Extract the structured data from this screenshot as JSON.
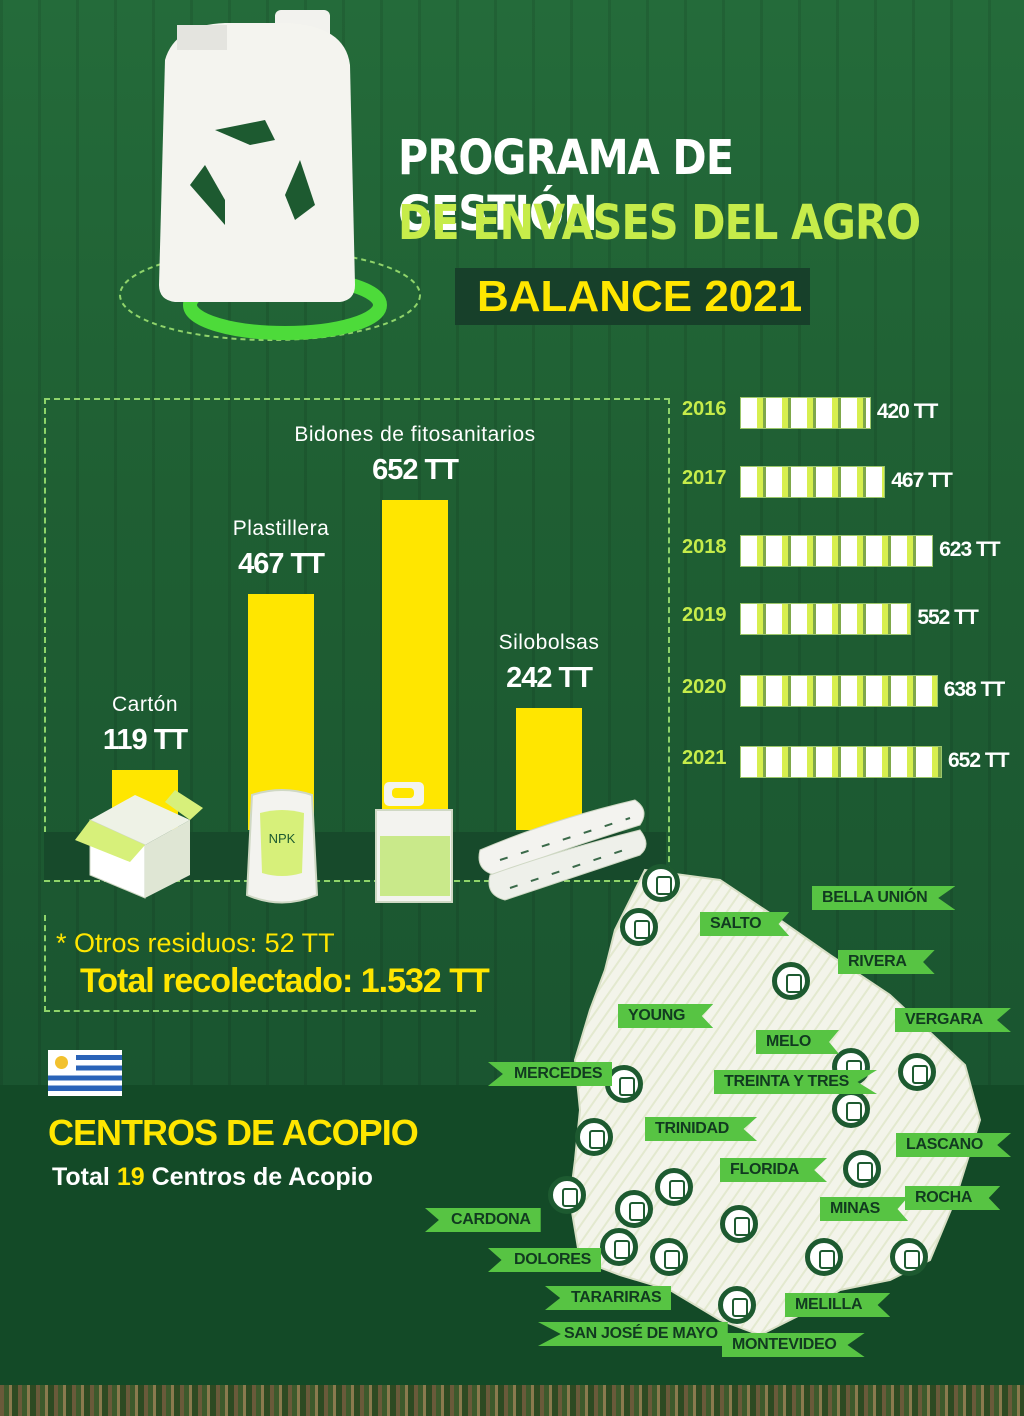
{
  "header": {
    "title_line1": "PROGRAMA DE GESTIÓN",
    "title_line2": "DE ENVASES DEL AGRO",
    "balance": "BALANCE 2021"
  },
  "chart_data": [
    {
      "type": "bar",
      "categories": [
        "Cartón",
        "Plastillera",
        "Bidones de fitosanitarios",
        "Silobolsas"
      ],
      "values": [
        119,
        467,
        652,
        242
      ],
      "value_labels": [
        "119 TT",
        "467 TT",
        "652 TT",
        "242 TT"
      ],
      "colors": {
        "bar": "#ffe600",
        "label": "#ffffff"
      },
      "bag_label": "NPK"
    },
    {
      "type": "bar",
      "orientation": "horizontal",
      "categories": [
        "2016",
        "2017",
        "2018",
        "2019",
        "2020",
        "2021"
      ],
      "values": [
        420,
        467,
        623,
        552,
        638,
        652
      ],
      "value_labels": [
        "420 TT",
        "467 TT",
        "623 TT",
        "552 TT",
        "638 TT",
        "652 TT"
      ]
    }
  ],
  "totals": {
    "others": "* Otros residuos: 52 TT",
    "total": "Total recolectado: 1.532 TT"
  },
  "centros": {
    "title": "CENTROS DE ACOPIO",
    "subtitle_pre": "Total ",
    "subtitle_num": "19",
    "subtitle_post": " Centros de Acopio",
    "locations": [
      "BELLA UNIÓN",
      "SALTO",
      "RIVERA",
      "YOUNG",
      "VERGARA",
      "MELO",
      "MERCEDES",
      "TREINTA Y TRES",
      "TRINIDAD",
      "LASCANO",
      "FLORIDA",
      "CARDONA",
      "MINAS",
      "ROCHA",
      "DOLORES",
      "TARARIRAS",
      "MELILLA",
      "SAN JOSÉ DE MAYO",
      "MONTEVIDEO"
    ]
  },
  "colors": {
    "accent_yellow": "#ffe600",
    "accent_green": "#c6ec4a",
    "tag_green": "#57c443",
    "dark_green": "#134a27"
  }
}
